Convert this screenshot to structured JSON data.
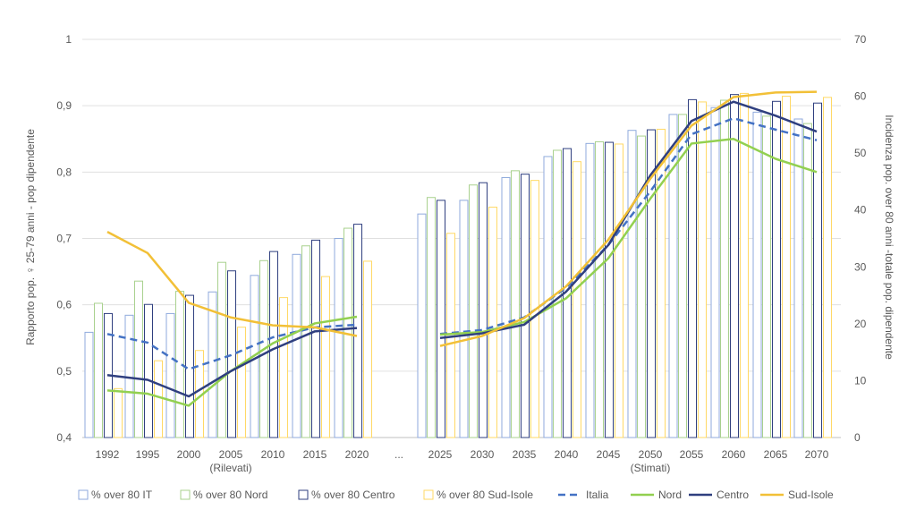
{
  "chart_data": {
    "type": "bar",
    "categories": [
      "1992",
      "1995",
      "2000",
      "2005",
      "2010",
      "2015",
      "2020",
      "...",
      "2025",
      "2030",
      "2035",
      "2040",
      "2045",
      "2050",
      "2055",
      "2060",
      "2065",
      "2070"
    ],
    "group_labels": [
      "(Rilevati)",
      "(Stimati)"
    ],
    "ylabel": "Rapporto pop. ♀ 25-79 anni - pop dipendente",
    "y2label": "Incidenza pop. over 80 anni -totale pop. dipendente",
    "ylim": [
      0.4,
      1.0
    ],
    "y_ticks": [
      "0,4",
      "0,5",
      "0,6",
      "0,7",
      "0,8",
      "0,9",
      "1"
    ],
    "y2lim": [
      0,
      70
    ],
    "y2_ticks": [
      "0",
      "10",
      "20",
      "30",
      "40",
      "50",
      "60",
      "70"
    ],
    "grid": true,
    "legend_position": "bottom",
    "bar_series": [
      {
        "name": "% over 80 IT",
        "axis": "right",
        "color": "#8faadc",
        "values": [
          18.5,
          21.5,
          21.8,
          25.6,
          28.5,
          32.2,
          35.0,
          null,
          39.3,
          41.7,
          45.7,
          49.4,
          51.7,
          54.0,
          56.8,
          58.0,
          57.2,
          56.0
        ]
      },
      {
        "name": "% over 80 Nord",
        "axis": "right",
        "color": "#a9d18e",
        "values": [
          23.6,
          27.5,
          25.7,
          30.8,
          31.1,
          33.7,
          36.8,
          null,
          42.2,
          44.4,
          46.9,
          50.5,
          52.0,
          53.0,
          56.8,
          59.3,
          56.5,
          55.2
        ]
      },
      {
        "name": "% over 80 Centro",
        "axis": "right",
        "color": "#2f3f7f",
        "values": [
          21.8,
          23.4,
          25.0,
          29.3,
          32.7,
          34.7,
          37.5,
          null,
          41.7,
          44.8,
          46.3,
          50.8,
          51.9,
          54.1,
          59.4,
          60.3,
          59.1,
          58.8
        ]
      },
      {
        "name": "% over 80 Sud-Isole",
        "axis": "right",
        "color": "#ffd966",
        "values": [
          8.6,
          13.5,
          15.3,
          19.4,
          24.6,
          28.3,
          31.0,
          null,
          35.9,
          40.5,
          45.2,
          48.5,
          51.6,
          54.2,
          59.0,
          60.5,
          60.0,
          59.8
        ]
      }
    ],
    "line_series": [
      {
        "name": "Italia",
        "axis": "left",
        "color": "#4472c4",
        "dashed": true,
        "values": [
          0.556,
          0.543,
          0.503,
          0.524,
          0.551,
          0.566,
          0.57,
          null,
          0.556,
          0.562,
          0.581,
          0.626,
          0.69,
          0.771,
          0.857,
          0.881,
          0.864,
          0.848
        ]
      },
      {
        "name": "Nord",
        "axis": "left",
        "color": "#92d050",
        "dashed": false,
        "values": [
          0.471,
          0.466,
          0.448,
          0.5,
          0.542,
          0.572,
          0.582,
          null,
          0.555,
          0.559,
          0.574,
          0.61,
          0.67,
          0.76,
          0.843,
          0.85,
          0.82,
          0.8
        ]
      },
      {
        "name": "Centro",
        "axis": "left",
        "color": "#2f3f7f",
        "dashed": false,
        "values": [
          0.494,
          0.487,
          0.462,
          0.5,
          0.533,
          0.56,
          0.565,
          null,
          0.55,
          0.557,
          0.57,
          0.62,
          0.69,
          0.795,
          0.877,
          0.906,
          0.885,
          0.861
        ]
      },
      {
        "name": "Sud-Isole",
        "axis": "left",
        "color": "#f2c037",
        "dashed": false,
        "values": [
          0.71,
          0.678,
          0.603,
          0.581,
          0.569,
          0.566,
          0.553,
          null,
          0.538,
          0.553,
          0.58,
          0.628,
          0.698,
          0.79,
          0.87,
          0.913,
          0.92,
          0.921
        ]
      }
    ]
  }
}
